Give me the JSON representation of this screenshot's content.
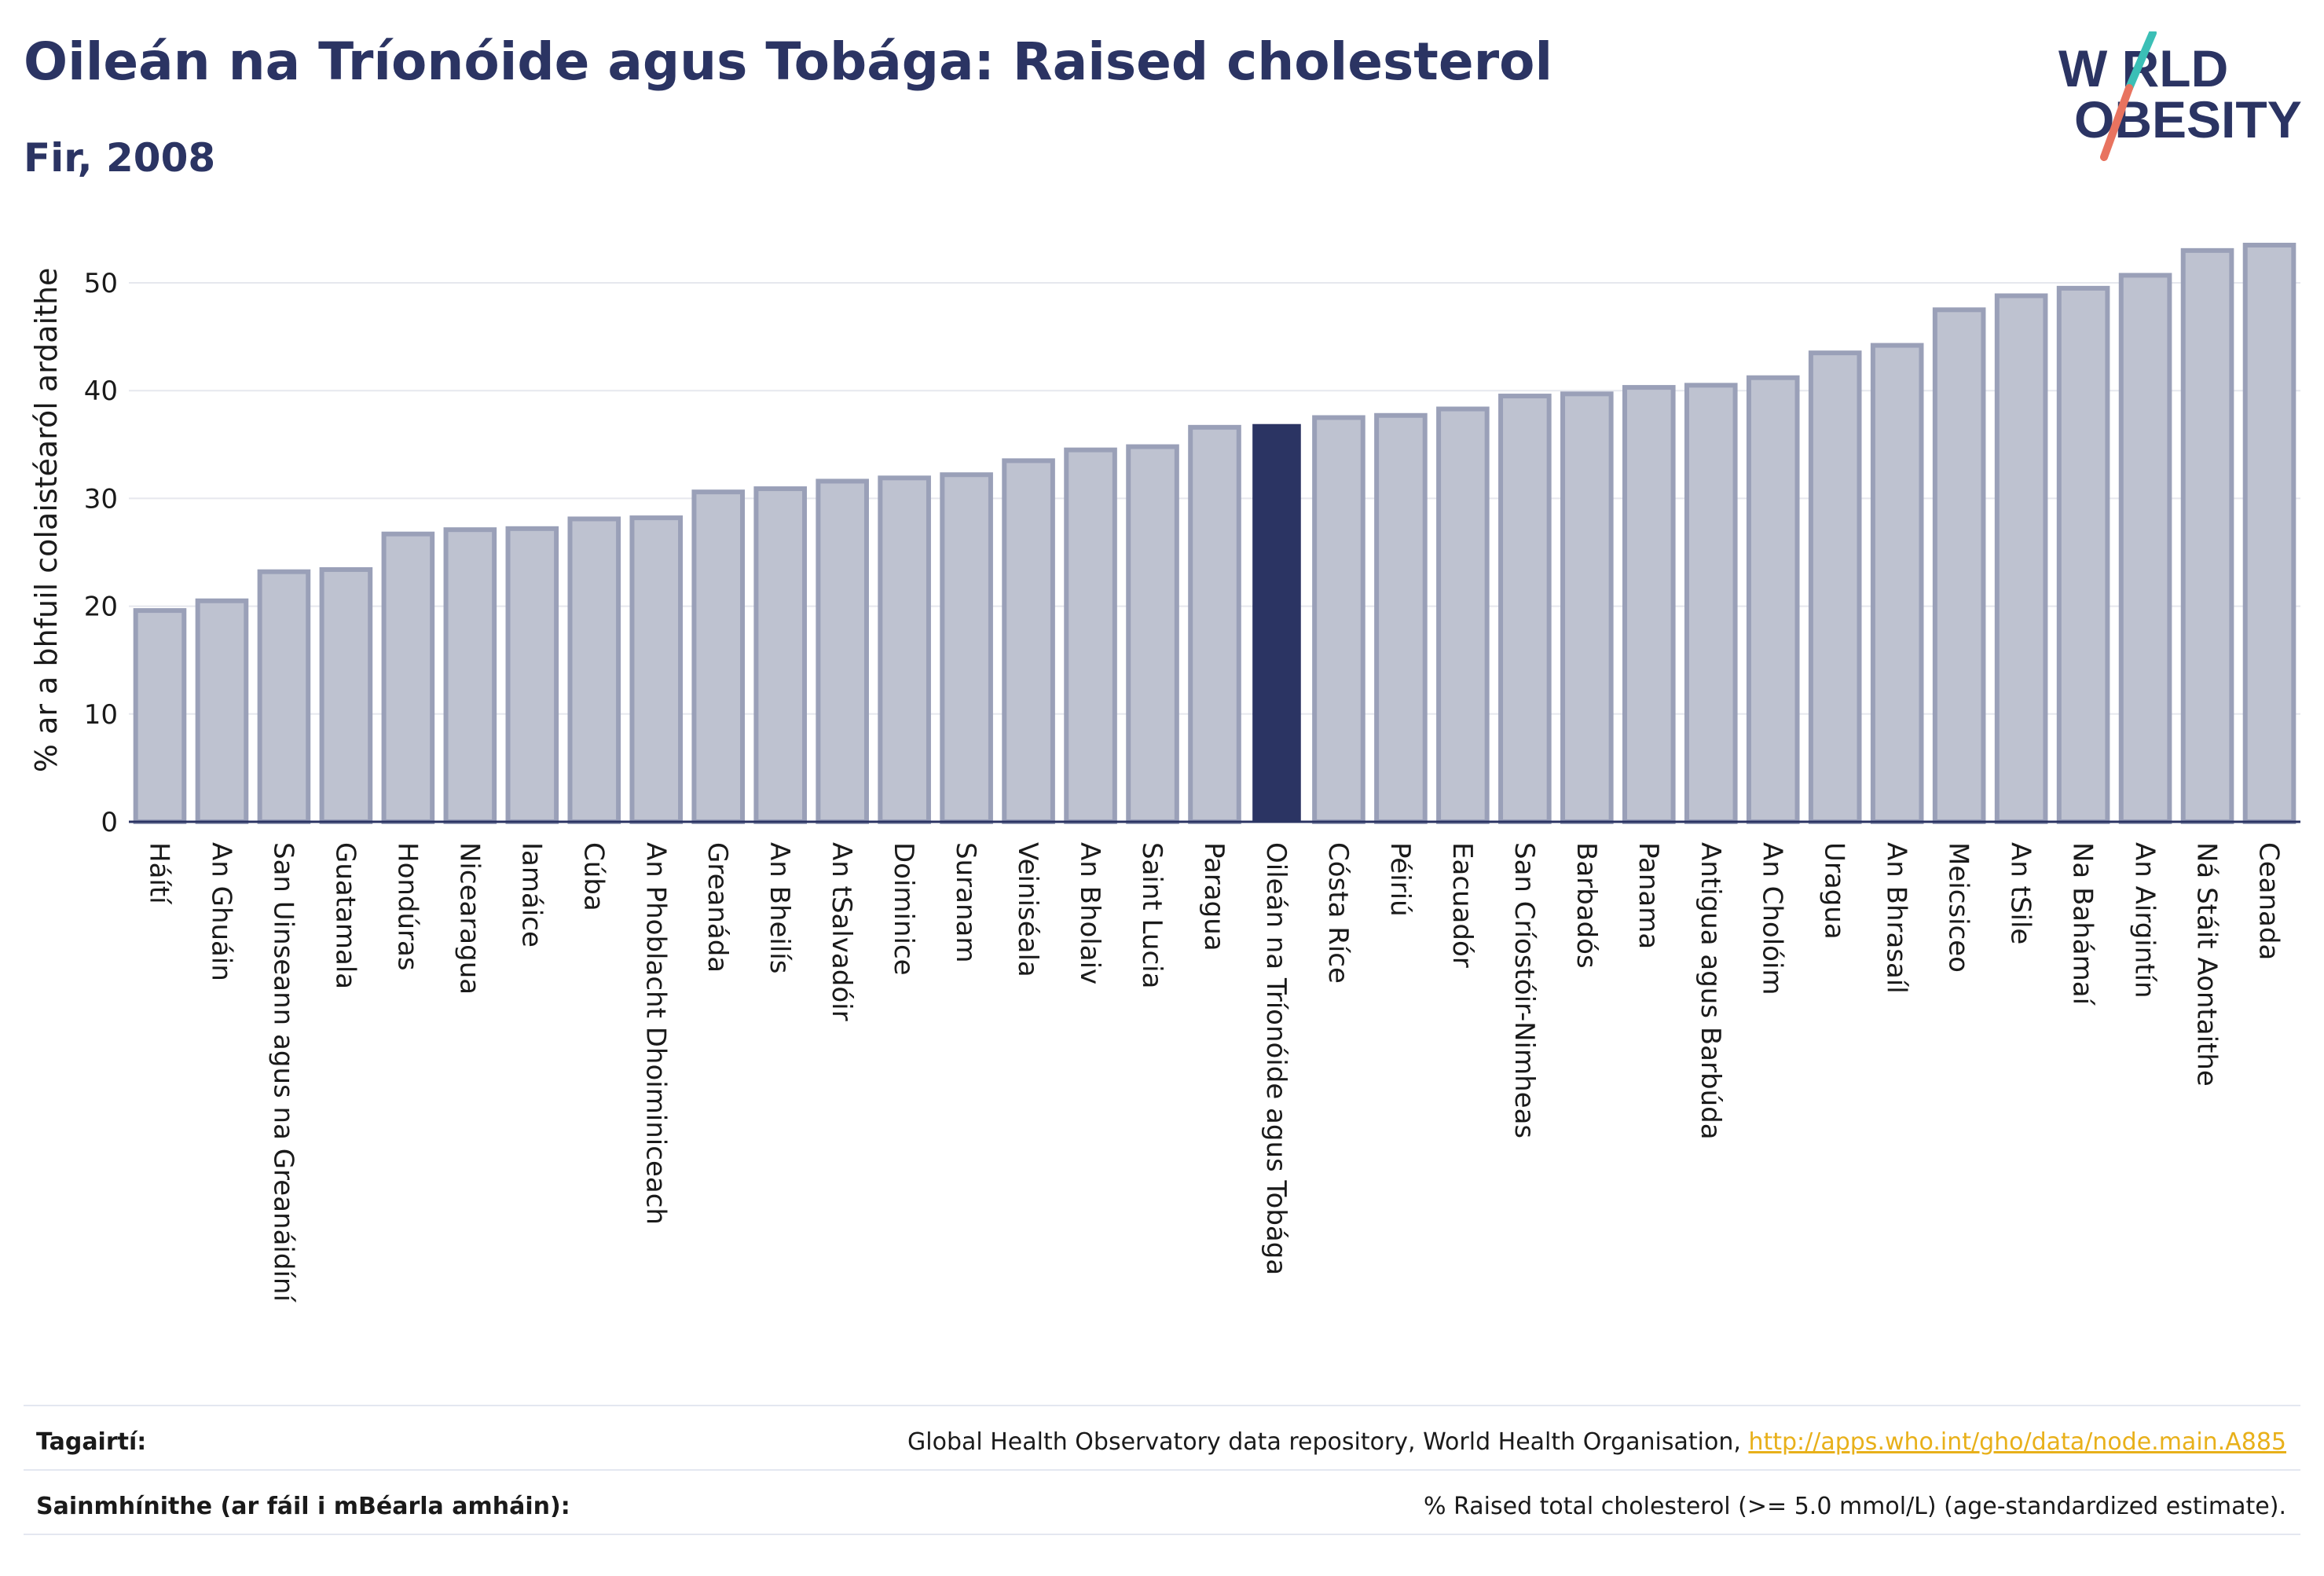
{
  "header": {
    "title": "Oileán na Tríonóide agus Tobága: Raised cholesterol",
    "subtitle": "Fir, 2008"
  },
  "logo": {
    "line1": "W RLD",
    "line2": "OBESITY",
    "colors": {
      "text": "#2b3463",
      "slash_top": "#3bbfb6",
      "slash_bottom": "#e8735f"
    }
  },
  "chart_data": {
    "type": "bar",
    "ylabel": "% ar a bhfuil colaistéaról ardaithe",
    "ylim": [
      0,
      56
    ],
    "yticks": [
      0,
      10,
      20,
      30,
      40,
      50
    ],
    "grid": true,
    "highlight": "Oileán na Tríonóide agus Tobága",
    "colors": {
      "bar": "#bec2d0",
      "bar_edge": "#9aa0b8",
      "highlight": "#2b3463",
      "grid": "#e6e8ee",
      "axis": "#2b3463"
    },
    "categories": [
      "Háítí",
      "An Ghuáin",
      "San Uinseann agus na Greanáidíní",
      "Guatamala",
      "Hondúras",
      "Nicearagua",
      "Iamáice",
      "Cúba",
      "An Phoblacht Dhoiminiceach",
      "Greanáda",
      "An Bheilís",
      "An tSalvadóir",
      "Doiminice",
      "Suranam",
      "Veiniséala",
      "An Bholaiv",
      "Saint Lucia",
      "Paragua",
      "Oileán na Tríonóide agus Tobága",
      "Cósta Ríce",
      "Péiriú",
      "Eacuadór",
      "San Críostóir-Nimheas",
      "Barbadós",
      "Panama",
      "Antigua agus Barbúda",
      "An Cholóim",
      "Uragua",
      "An Bhrasaíl",
      "Meicsiceo",
      "An tSile",
      "Na Bahámaí",
      "An Airgintín",
      "Ná Stáit Aontaithe",
      "Ceanada"
    ],
    "values": [
      19.6,
      20.5,
      23.2,
      23.4,
      26.7,
      27.1,
      27.2,
      28.1,
      28.2,
      30.6,
      30.9,
      31.6,
      31.9,
      32.2,
      33.5,
      34.5,
      34.8,
      36.6,
      36.9,
      37.5,
      37.7,
      38.3,
      39.5,
      39.7,
      40.3,
      40.5,
      41.2,
      43.5,
      44.2,
      47.5,
      48.8,
      49.5,
      50.7,
      53.0,
      53.5
    ]
  },
  "footer": {
    "references_label": "Tagairtí:",
    "references_text": "Global Health Observatory data repository, World Health Organisation, ",
    "references_link": "http://apps.who.int/gho/data/node.main.A885",
    "definitions_label": "Sainmhínithe (ar fáil i mBéarla amháin):",
    "definitions_text": "% Raised total cholesterol (>= 5.0 mmol/L) (age-standardized estimate)."
  }
}
